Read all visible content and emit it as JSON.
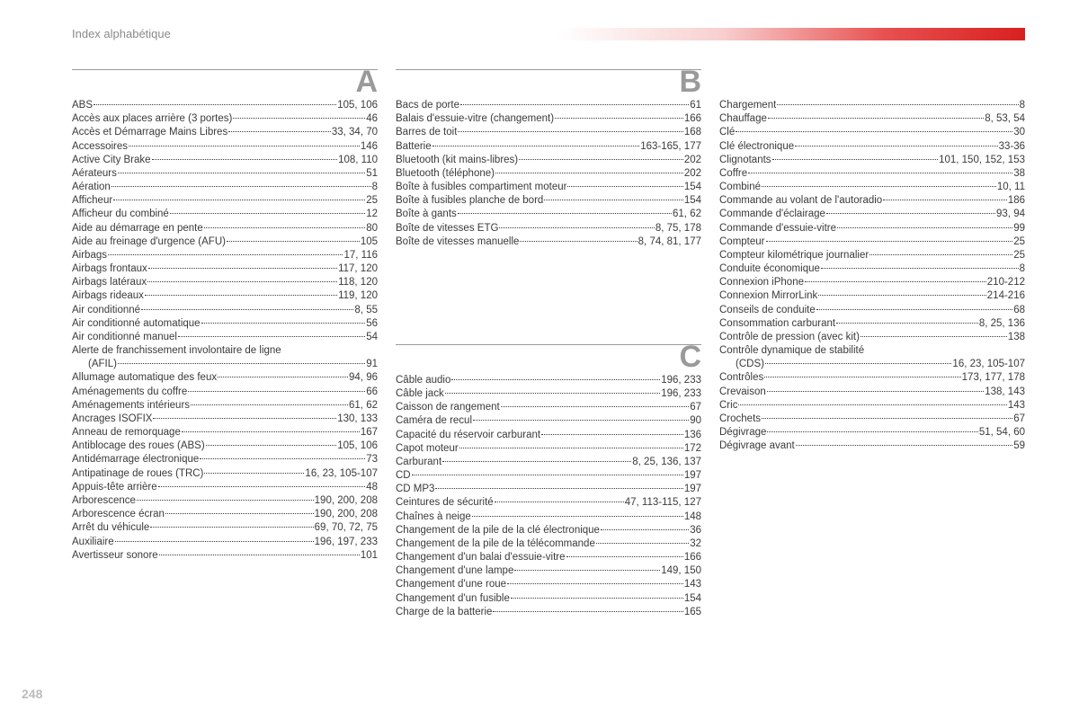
{
  "title": "Index alphabétique",
  "pageNumber": "248",
  "colors": {
    "text": "#3a3a3a",
    "muted": "#8a8a8a",
    "rule": "#9a9a9a",
    "barGradient": [
      "#ffffff",
      "#f8d0d0",
      "#e85050",
      "#d82020"
    ],
    "pageNum": "#bcbcbc"
  },
  "typography": {
    "bodyFont": "Arial",
    "bodySize": 11.5,
    "letterSize": 34,
    "titleSize": 13
  },
  "columns": [
    {
      "sections": [
        {
          "letter": "A",
          "entries": [
            {
              "label": "ABS",
              "pages": "105, 106"
            },
            {
              "label": "Accès aux places arrière (3 portes)",
              "pages": "46"
            },
            {
              "label": "Accès et Démarrage Mains Libres",
              "pages": "33, 34, 70"
            },
            {
              "label": "Accessoires",
              "pages": "146"
            },
            {
              "label": "Active City Brake",
              "pages": "108, 110"
            },
            {
              "label": "Aérateurs",
              "pages": "51"
            },
            {
              "label": "Aération",
              "pages": "8"
            },
            {
              "label": "Afficheur",
              "pages": "25"
            },
            {
              "label": "Afficheur du combiné",
              "pages": "12"
            },
            {
              "label": "Aide au démarrage en pente",
              "pages": "80"
            },
            {
              "label": "Aide au freinage d'urgence (AFU)",
              "pages": "105"
            },
            {
              "label": "Airbags",
              "pages": "17, 116"
            },
            {
              "label": "Airbags frontaux",
              "pages": "117, 120"
            },
            {
              "label": "Airbags latéraux",
              "pages": "118, 120"
            },
            {
              "label": "Airbags rideaux",
              "pages": "119, 120"
            },
            {
              "label": "Air conditionné",
              "pages": "8, 55"
            },
            {
              "label": "Air conditionné automatique",
              "pages": "56"
            },
            {
              "label": "Air conditionné manuel",
              "pages": "54"
            },
            {
              "label": "Alerte de franchissement involontaire de ligne",
              "pages": ""
            },
            {
              "label": "(AFIL)",
              "pages": "91",
              "cont": true
            },
            {
              "label": "Allumage automatique des feux",
              "pages": "94, 96"
            },
            {
              "label": "Aménagements du coffre",
              "pages": "66"
            },
            {
              "label": "Aménagements intérieurs",
              "pages": "61, 62"
            },
            {
              "label": "Ancrages ISOFIX",
              "pages": "130, 133"
            },
            {
              "label": "Anneau de remorquage",
              "pages": "167"
            },
            {
              "label": "Antiblocage des roues (ABS)",
              "pages": "105, 106"
            },
            {
              "label": "Antidémarrage électronique",
              "pages": "73"
            },
            {
              "label": "Antipatinage de roues (TRC)",
              "pages": "16, 23, 105-107"
            },
            {
              "label": "Appuis-tête arrière",
              "pages": "48"
            },
            {
              "label": "Arborescence",
              "pages": "190, 200, 208"
            },
            {
              "label": "Arborescence écran",
              "pages": "190, 200, 208"
            },
            {
              "label": "Arrêt du véhicule",
              "pages": "69, 70, 72, 75"
            },
            {
              "label": "Auxiliaire",
              "pages": "196, 197, 233"
            },
            {
              "label": "Avertisseur sonore",
              "pages": "101"
            }
          ]
        }
      ]
    },
    {
      "sections": [
        {
          "letter": "B",
          "entries": [
            {
              "label": "Bacs de porte",
              "pages": "61"
            },
            {
              "label": "Balais d'essuie-vitre (changement)",
              "pages": "166"
            },
            {
              "label": "Barres de toit",
              "pages": "168"
            },
            {
              "label": "Batterie",
              "pages": "163-165, 177"
            },
            {
              "label": "Bluetooth (kit mains-libres)",
              "pages": "202"
            },
            {
              "label": "Bluetooth (téléphone)",
              "pages": "202"
            },
            {
              "label": "Boîte à fusibles compartiment moteur",
              "pages": "154"
            },
            {
              "label": "Boîte à fusibles planche de bord",
              "pages": "154"
            },
            {
              "label": "Boîte à gants",
              "pages": "61, 62"
            },
            {
              "label": "Boîte de vitesses ETG",
              "pages": "8, 75, 178"
            },
            {
              "label": "Boîte de vitesses manuelle",
              "pages": "8, 74, 81, 177"
            }
          ]
        },
        {
          "letter": "C",
          "spaceBefore": true,
          "entries": [
            {
              "label": "Câble audio",
              "pages": "196, 233"
            },
            {
              "label": "Câble jack",
              "pages": "196, 233"
            },
            {
              "label": "Caisson de rangement",
              "pages": "67"
            },
            {
              "label": "Caméra de recul",
              "pages": "90"
            },
            {
              "label": "Capacité du réservoir carburant",
              "pages": "136"
            },
            {
              "label": "Capot moteur",
              "pages": "172"
            },
            {
              "label": "Carburant",
              "pages": "8, 25, 136, 137"
            },
            {
              "label": "CD",
              "pages": "197"
            },
            {
              "label": "CD MP3",
              "pages": "197"
            },
            {
              "label": "Ceintures de sécurité",
              "pages": "47, 113-115, 127"
            },
            {
              "label": "Chaînes à neige",
              "pages": "148"
            },
            {
              "label": "Changement de la pile de la clé électronique",
              "pages": "36"
            },
            {
              "label": "Changement de la pile de la télécommande",
              "pages": "32"
            },
            {
              "label": "Changement d'un balai d'essuie-vitre",
              "pages": "166"
            },
            {
              "label": "Changement d'une lampe",
              "pages": "149, 150"
            },
            {
              "label": "Changement d'une roue",
              "pages": "143"
            },
            {
              "label": "Changement d'un fusible",
              "pages": "154"
            },
            {
              "label": "Charge de la batterie",
              "pages": "165"
            }
          ]
        }
      ]
    },
    {
      "sections": [
        {
          "letter": "",
          "entries": [
            {
              "label": "Chargement",
              "pages": "8"
            },
            {
              "label": "Chauffage",
              "pages": "8, 53, 54"
            },
            {
              "label": "Clé",
              "pages": "30"
            },
            {
              "label": "Clé électronique",
              "pages": "33-36"
            },
            {
              "label": "Clignotants",
              "pages": "101, 150, 152, 153"
            },
            {
              "label": "Coffre",
              "pages": "38"
            },
            {
              "label": "Combiné",
              "pages": "10, 11"
            },
            {
              "label": "Commande au volant de l'autoradio",
              "pages": "186"
            },
            {
              "label": "Commande d'éclairage",
              "pages": "93, 94"
            },
            {
              "label": "Commande d'essuie-vitre",
              "pages": "99"
            },
            {
              "label": "Compteur",
              "pages": "25"
            },
            {
              "label": "Compteur kilométrique journalier",
              "pages": "25"
            },
            {
              "label": "Conduite économique",
              "pages": "8"
            },
            {
              "label": "Connexion iPhone",
              "pages": "210-212"
            },
            {
              "label": "Connexion MirrorLink",
              "pages": "214-216"
            },
            {
              "label": "Conseils de conduite",
              "pages": "68"
            },
            {
              "label": "Consommation carburant",
              "pages": "8, 25, 136"
            },
            {
              "label": "Contrôle de pression (avec kit)",
              "pages": "138"
            },
            {
              "label": "Contrôle dynamique de stabilité",
              "pages": ""
            },
            {
              "label": "(CDS)",
              "pages": "16, 23, 105-107",
              "cont": true
            },
            {
              "label": "Contrôles",
              "pages": "173, 177, 178"
            },
            {
              "label": "Crevaison",
              "pages": "138, 143"
            },
            {
              "label": "Cric",
              "pages": "143"
            },
            {
              "label": "Crochets",
              "pages": "67"
            },
            {
              "label": "Dégivrage",
              "pages": "51, 54, 60"
            },
            {
              "label": "Dégivrage avant",
              "pages": "59"
            }
          ]
        }
      ]
    }
  ]
}
